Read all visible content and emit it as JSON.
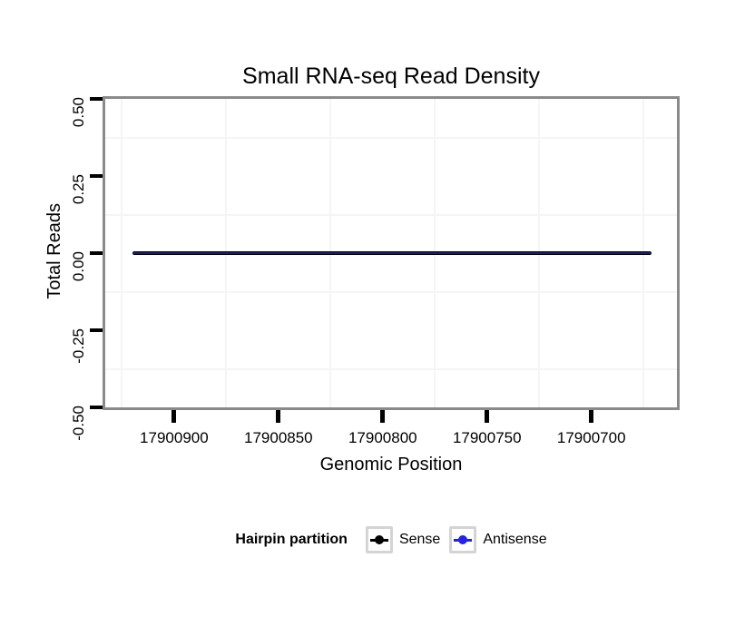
{
  "chart_data": {
    "type": "line",
    "title": "Small RNA-seq Read Density",
    "xlabel": "Genomic Position",
    "ylabel": "Total Reads",
    "x_reversed": true,
    "xlim": [
      17900933,
      17900659
    ],
    "ylim": [
      -0.5,
      0.5
    ],
    "x_ticks": [
      17900900,
      17900850,
      17900800,
      17900750,
      17900700
    ],
    "x_tick_labels": [
      "17900900",
      "17900850",
      "17900800",
      "17900750",
      "17900700"
    ],
    "y_ticks": [
      0.5,
      0.25,
      0,
      -0.25,
      -0.5
    ],
    "y_tick_labels": [
      "0.50",
      "0.25",
      "0.00",
      "-0.25",
      "-0.50"
    ],
    "grid": "minor-only",
    "legend": {
      "position": "bottom",
      "title": "Hairpin partition",
      "items": [
        {
          "label": "Sense",
          "color": "#000000"
        },
        {
          "label": "Antisense",
          "color": "#2222ee"
        }
      ]
    },
    "series": [
      {
        "name": "Sense",
        "color": "#000000",
        "y_constant": 0,
        "x_start": 17900920,
        "x_end": 17900671
      },
      {
        "name": "Antisense",
        "color": "#2222ee",
        "y_constant": 0,
        "x_start": 17900920,
        "x_end": 17900671
      }
    ],
    "colors": {
      "panel_border": "#8a8a8a",
      "panel_background": "#ffffff",
      "minor_grid": "#f5f5f5",
      "tick": "#000000",
      "text": "#000000",
      "legend_key_border": "#d4d4d4",
      "series_overlap_core": "#1d1d66"
    }
  }
}
